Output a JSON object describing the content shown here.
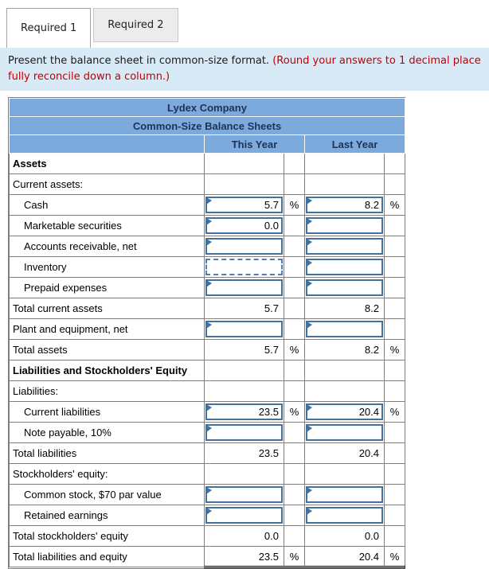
{
  "tabs": [
    {
      "label": "Required 1",
      "active": true
    },
    {
      "label": "Required 2",
      "active": false
    }
  ],
  "instruction": {
    "text_black": "Present the balance sheet in common-size format.",
    "text_red_line1": "(Round your answers to 1 decimal place",
    "text_red_line2": "fully reconcile down a column.)"
  },
  "table": {
    "title": "Lydex Company",
    "subtitle": "Common-Size Balance Sheets",
    "col_this_year": "This Year",
    "col_last_year": "Last Year",
    "rows": [
      {
        "label": "Assets",
        "bold": true,
        "this_year": {
          "kind": "empty"
        },
        "last_year": {
          "kind": "empty"
        }
      },
      {
        "label": "Current assets:",
        "this_year": {
          "kind": "empty"
        },
        "last_year": {
          "kind": "empty"
        }
      },
      {
        "label": "Cash",
        "indent": true,
        "this_year": {
          "kind": "input",
          "value": "5.7",
          "pct": "%"
        },
        "last_year": {
          "kind": "input",
          "value": "8.2",
          "pct": "%"
        }
      },
      {
        "label": "Marketable securities",
        "indent": true,
        "this_year": {
          "kind": "input",
          "value": "0.0"
        },
        "last_year": {
          "kind": "input",
          "value": ""
        }
      },
      {
        "label": "Accounts receivable, net",
        "indent": true,
        "this_year": {
          "kind": "input",
          "value": ""
        },
        "last_year": {
          "kind": "input",
          "value": ""
        }
      },
      {
        "label": "Inventory",
        "indent": true,
        "this_year": {
          "kind": "input_focused",
          "value": ""
        },
        "last_year": {
          "kind": "input",
          "value": ""
        }
      },
      {
        "label": "Prepaid expenses",
        "indent": true,
        "this_year": {
          "kind": "input",
          "value": ""
        },
        "last_year": {
          "kind": "input",
          "value": ""
        }
      },
      {
        "label": "Total current assets",
        "row_type": "total",
        "this_year": {
          "kind": "text",
          "value": "5.7"
        },
        "last_year": {
          "kind": "text",
          "value": "8.2"
        }
      },
      {
        "label": "Plant and equipment, net",
        "this_year": {
          "kind": "input",
          "value": ""
        },
        "last_year": {
          "kind": "input",
          "value": ""
        }
      },
      {
        "label": "Total assets",
        "row_type": "total",
        "this_year": {
          "kind": "text",
          "value": "5.7",
          "pct": "%"
        },
        "last_year": {
          "kind": "text",
          "value": "8.2",
          "pct": "%"
        }
      },
      {
        "label": "Liabilities and Stockholders' Equity",
        "bold": true,
        "this_year": {
          "kind": "empty"
        },
        "last_year": {
          "kind": "empty"
        }
      },
      {
        "label": "Liabilities:",
        "this_year": {
          "kind": "empty"
        },
        "last_year": {
          "kind": "empty"
        }
      },
      {
        "label": "Current liabilities",
        "indent": true,
        "this_year": {
          "kind": "input",
          "value": "23.5",
          "pct": "%"
        },
        "last_year": {
          "kind": "input",
          "value": "20.4",
          "pct": "%"
        }
      },
      {
        "label": "Note payable, 10%",
        "indent": true,
        "this_year": {
          "kind": "input",
          "value": ""
        },
        "last_year": {
          "kind": "input",
          "value": ""
        }
      },
      {
        "label": "Total liabilities",
        "row_type": "total",
        "this_year": {
          "kind": "text",
          "value": "23.5"
        },
        "last_year": {
          "kind": "text",
          "value": "20.4"
        }
      },
      {
        "label": "Stockholders' equity:",
        "this_year": {
          "kind": "empty"
        },
        "last_year": {
          "kind": "empty"
        }
      },
      {
        "label": "Common stock, $70 par value",
        "indent": true,
        "this_year": {
          "kind": "input",
          "value": ""
        },
        "last_year": {
          "kind": "input",
          "value": ""
        }
      },
      {
        "label": "Retained earnings",
        "indent": true,
        "this_year": {
          "kind": "input",
          "value": ""
        },
        "last_year": {
          "kind": "input",
          "value": ""
        }
      },
      {
        "label": "Total stockholders' equity",
        "row_type": "total",
        "this_year": {
          "kind": "text",
          "value": "0.0"
        },
        "last_year": {
          "kind": "text",
          "value": "0.0"
        }
      },
      {
        "label": "Total liabilities and equity",
        "row_type": "total grand",
        "this_year": {
          "kind": "text",
          "value": "23.5",
          "pct": "%"
        },
        "last_year": {
          "kind": "text",
          "value": "20.4",
          "pct": "%"
        }
      }
    ]
  },
  "colors": {
    "header_blue": "#7caadd",
    "panel_blue": "#d9eaf7",
    "instruction_red": "#c00000",
    "input_border_blue": "#41719c",
    "grid_gray": "#7f7f7f"
  }
}
